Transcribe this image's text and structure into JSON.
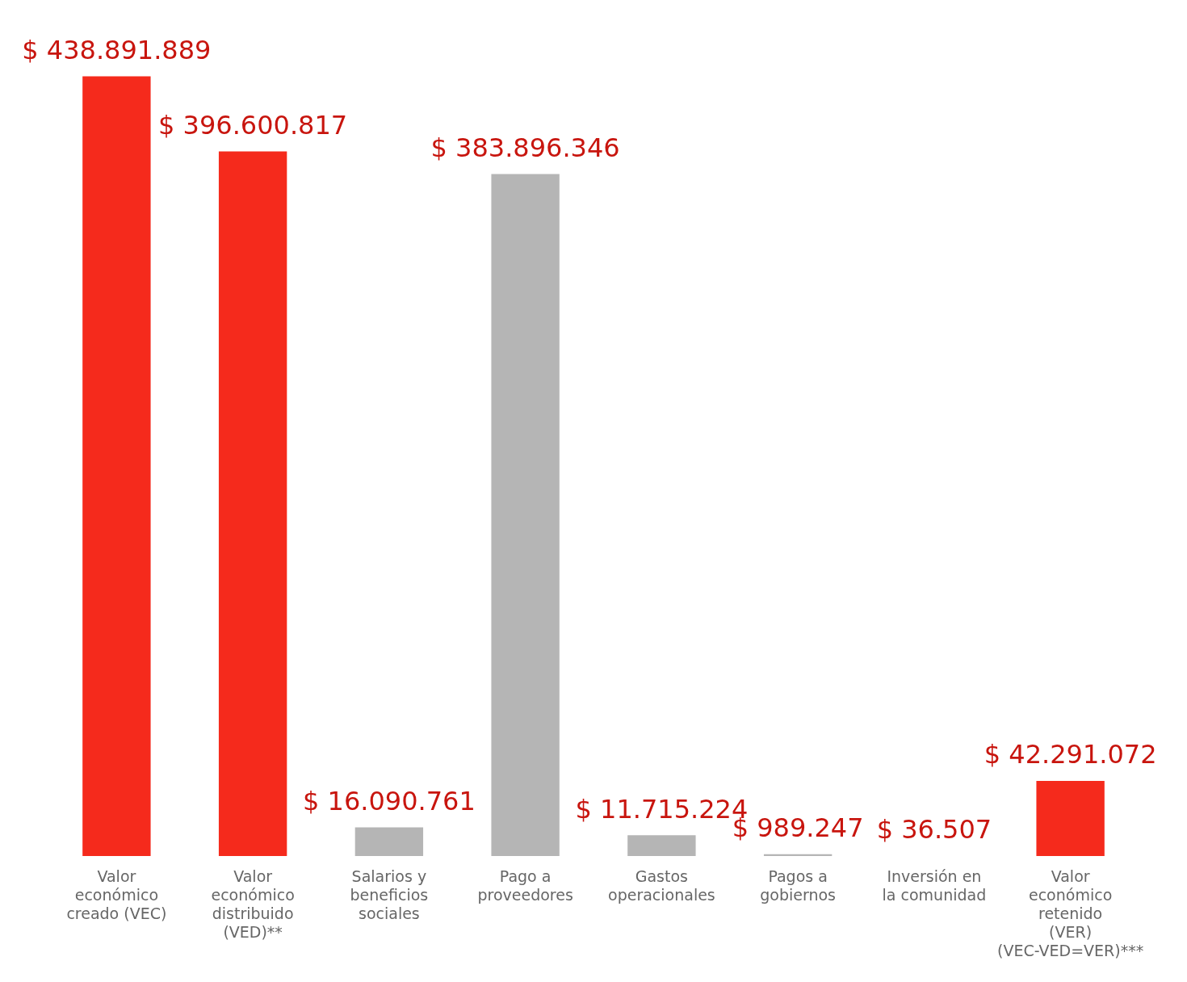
{
  "chart_data": {
    "type": "bar",
    "categories": [
      "Valor económico creado (VEC)",
      "Valor económico distribuido (VED)**",
      "Salarios y beneficios sociales",
      "Pago a proveedores",
      "Gastos operacionales",
      "Pagos a gobiernos",
      "Inversión en la comunidad",
      "Valor económico retenido (VER) (VEC-VED=VER)***"
    ],
    "values": [
      438891889,
      396600817,
      16090761,
      383896346,
      11715224,
      989247,
      36507,
      42291072
    ],
    "colors": [
      "#f52a1c",
      "#f52a1c",
      "#b5b5b5",
      "#b5b5b5",
      "#b5b5b5",
      "#b5b5b5",
      "#b5b5b5",
      "#f52a1c"
    ],
    "value_labels": [
      "$ 438.891.889",
      "$ 396.600.817",
      "$ 16.090.761",
      "$ 383.896.346",
      "$ 11.715.224",
      "$ 989.247",
      "$ 36.507",
      "$ 42.291.072"
    ],
    "grid": false,
    "legend": false
  }
}
